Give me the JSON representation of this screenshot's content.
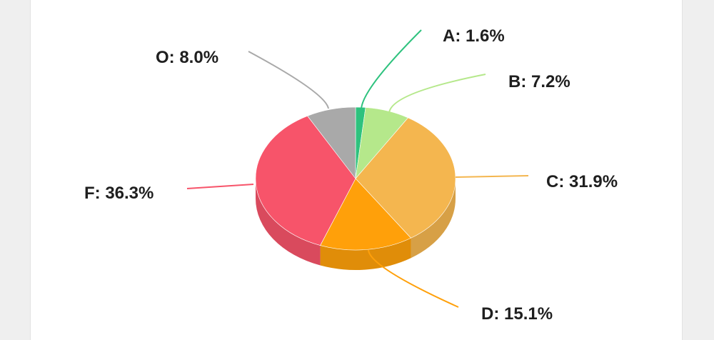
{
  "chart_data": {
    "type": "pie",
    "style": "3d",
    "series": [
      {
        "name": "A",
        "value": 1.6,
        "label": "A: 1.6%",
        "color": "#2ec27e"
      },
      {
        "name": "B",
        "value": 7.2,
        "label": "B: 7.2%",
        "color": "#b5e88b"
      },
      {
        "name": "C",
        "value": 31.9,
        "label": "C: 31.9%",
        "color": "#f4b64f"
      },
      {
        "name": "D",
        "value": 15.1,
        "label": "D: 15.1%",
        "color": "#ffa00a"
      },
      {
        "name": "F",
        "value": 36.3,
        "label": "F: 36.3%",
        "color": "#f7546a"
      },
      {
        "name": "O",
        "value": 8.0,
        "label": "O: 8.0%",
        "color": "#a9a9a9"
      }
    ],
    "legend": "none",
    "labels": "outside with leader lines"
  }
}
